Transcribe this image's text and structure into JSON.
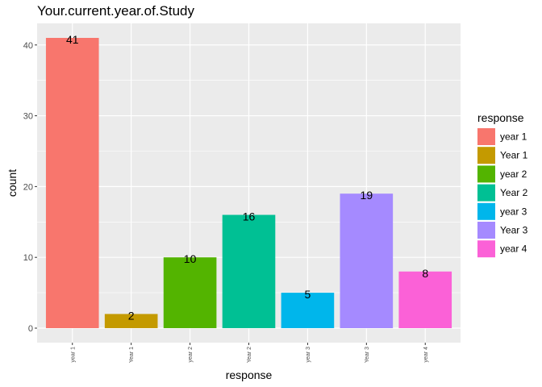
{
  "chart_data": {
    "type": "bar",
    "title": "Your.current.year.of.Study",
    "xlabel": "response",
    "ylabel": "count",
    "categories": [
      "year 1",
      "Year 1",
      "year 2",
      "Year 2",
      "year 3",
      "Year 3",
      "year 4"
    ],
    "values": [
      41,
      2,
      10,
      16,
      5,
      19,
      8
    ],
    "colors": [
      "#F8766D",
      "#C49A00",
      "#53B400",
      "#00C094",
      "#00B6EB",
      "#A58AFF",
      "#FB61D7"
    ],
    "ylim": [
      -2.05,
      43.05
    ],
    "yticks": [
      0,
      10,
      20,
      30,
      40
    ],
    "ytick_labels": [
      "0",
      "10",
      "20",
      "30",
      "40"
    ],
    "grid": true,
    "panel_background": "#EBEBEB",
    "legend": {
      "title": "response",
      "position": "right",
      "entries": [
        "year 1",
        "Year 1",
        "year 2",
        "Year 2",
        "year 3",
        "Year 3",
        "year 4"
      ]
    }
  }
}
